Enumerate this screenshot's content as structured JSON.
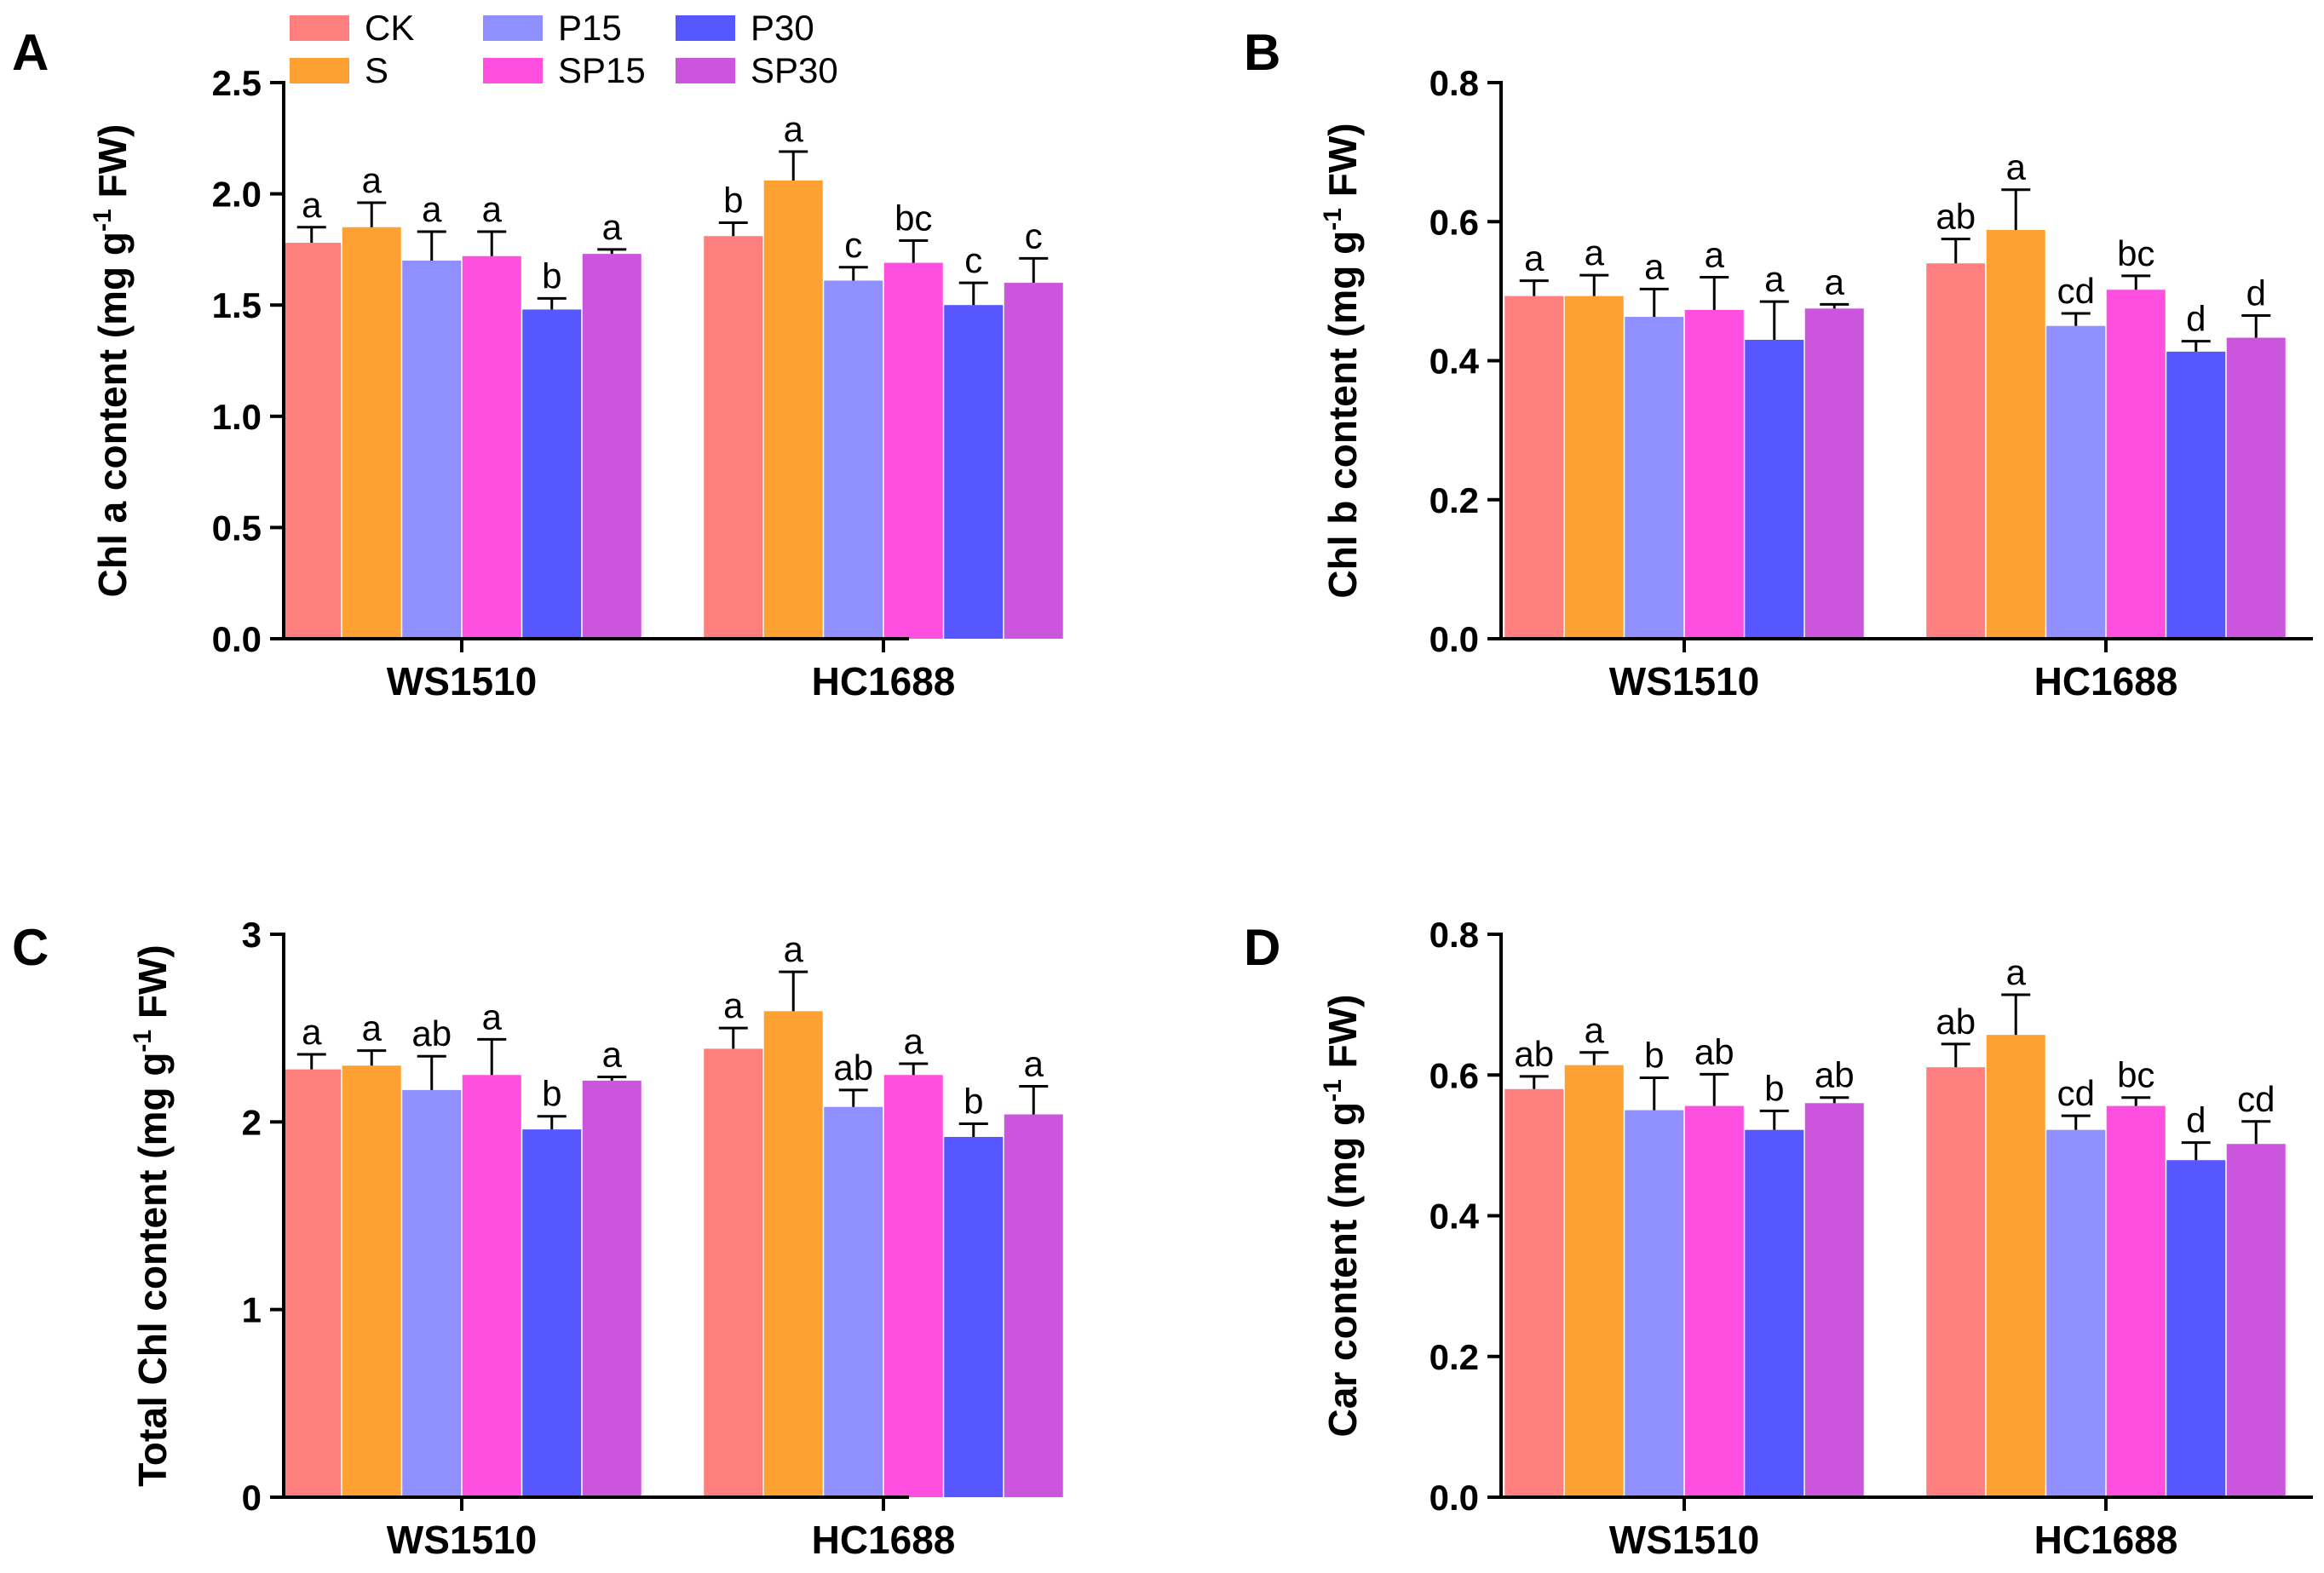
{
  "figure": {
    "legend": [
      {
        "name": "CK",
        "color": "#FF7F7F"
      },
      {
        "name": "S",
        "color": "#FFA033"
      },
      {
        "name": "P15",
        "color": "#8F8FFF"
      },
      {
        "name": "P30",
        "color": "#5757FF"
      },
      {
        "name": "SP15",
        "color": "#FF4FE0"
      },
      {
        "name": "SP30",
        "color": "#CC55DD"
      }
    ]
  },
  "chart_data": [
    {
      "panel": "A",
      "type": "bar",
      "ylabel_main": "Chl a content (mg g",
      "ylabel_sup": "-1",
      "ylabel_end": " FW)",
      "categories": [
        "WS1510",
        "HC1688"
      ],
      "ylim": [
        0,
        2.5
      ],
      "yticks": [
        "0.0",
        "0.5",
        "1.0",
        "1.5",
        "2.0",
        "2.5"
      ],
      "series": [
        {
          "name": "CK",
          "values": [
            1.78,
            1.81
          ],
          "errors": [
            0.07,
            0.06
          ],
          "letters": [
            "a",
            "b"
          ]
        },
        {
          "name": "S",
          "values": [
            1.85,
            2.06
          ],
          "errors": [
            0.11,
            0.13
          ],
          "letters": [
            "a",
            "a"
          ]
        },
        {
          "name": "P15",
          "values": [
            1.7,
            1.61
          ],
          "errors": [
            0.13,
            0.06
          ],
          "letters": [
            "a",
            "c"
          ]
        },
        {
          "name": "SP15",
          "values": [
            1.72,
            1.69
          ],
          "errors": [
            0.11,
            0.1
          ],
          "letters": [
            "a",
            "bc"
          ]
        },
        {
          "name": "P30",
          "values": [
            1.48,
            1.5
          ],
          "errors": [
            0.05,
            0.1
          ],
          "letters": [
            "b",
            "c"
          ]
        },
        {
          "name": "SP30",
          "values": [
            1.73,
            1.6
          ],
          "errors": [
            0.02,
            0.11
          ],
          "letters": [
            "a",
            "c"
          ]
        }
      ]
    },
    {
      "panel": "B",
      "type": "bar",
      "ylabel_main": "Chl b content (mg g",
      "ylabel_sup": "-1",
      "ylabel_end": " FW)",
      "categories": [
        "WS1510",
        "HC1688"
      ],
      "ylim": [
        0,
        0.8
      ],
      "yticks": [
        "0.0",
        "0.2",
        "0.4",
        "0.6",
        "0.8"
      ],
      "series": [
        {
          "name": "CK",
          "values": [
            0.493,
            0.54
          ],
          "errors": [
            0.022,
            0.035
          ],
          "letters": [
            "a",
            "ab"
          ]
        },
        {
          "name": "S",
          "values": [
            0.493,
            0.588
          ],
          "errors": [
            0.03,
            0.058
          ],
          "letters": [
            "a",
            "a"
          ]
        },
        {
          "name": "P15",
          "values": [
            0.463,
            0.45
          ],
          "errors": [
            0.04,
            0.018
          ],
          "letters": [
            "a",
            "cd"
          ]
        },
        {
          "name": "SP15",
          "values": [
            0.473,
            0.502
          ],
          "errors": [
            0.047,
            0.02
          ],
          "letters": [
            "a",
            "bc"
          ]
        },
        {
          "name": "P30",
          "values": [
            0.43,
            0.413
          ],
          "errors": [
            0.055,
            0.015
          ],
          "letters": [
            "a",
            "d"
          ]
        },
        {
          "name": "SP30",
          "values": [
            0.475,
            0.433
          ],
          "errors": [
            0.006,
            0.032
          ],
          "letters": [
            "a",
            "d"
          ]
        }
      ]
    },
    {
      "panel": "C",
      "type": "bar",
      "ylabel_main": "Total Chl content (mg g",
      "ylabel_sup": "-1",
      "ylabel_end": " FW)",
      "categories": [
        "WS1510",
        "HC1688"
      ],
      "ylim": [
        0,
        3
      ],
      "yticks": [
        "0",
        "1",
        "2",
        "3"
      ],
      "series": [
        {
          "name": "CK",
          "values": [
            2.28,
            2.39
          ],
          "errors": [
            0.08,
            0.11
          ],
          "letters": [
            "a",
            "a"
          ]
        },
        {
          "name": "S",
          "values": [
            2.3,
            2.59
          ],
          "errors": [
            0.08,
            0.21
          ],
          "letters": [
            "a",
            "a"
          ]
        },
        {
          "name": "P15",
          "values": [
            2.17,
            2.08
          ],
          "errors": [
            0.18,
            0.09
          ],
          "letters": [
            "ab",
            "ab"
          ]
        },
        {
          "name": "SP15",
          "values": [
            2.25,
            2.25
          ],
          "errors": [
            0.19,
            0.06
          ],
          "letters": [
            "a",
            "a"
          ]
        },
        {
          "name": "P30",
          "values": [
            1.96,
            1.92
          ],
          "errors": [
            0.07,
            0.07
          ],
          "letters": [
            "b",
            "b"
          ]
        },
        {
          "name": "SP30",
          "values": [
            2.22,
            2.04
          ],
          "errors": [
            0.02,
            0.15
          ],
          "letters": [
            "a",
            "a"
          ]
        }
      ]
    },
    {
      "panel": "D",
      "type": "bar",
      "ylabel_main": "Car content (mg g",
      "ylabel_sup": "-1",
      "ylabel_end": " FW)",
      "categories": [
        "WS1510",
        "HC1688"
      ],
      "ylim": [
        0,
        0.8
      ],
      "yticks": [
        "0.0",
        "0.2",
        "0.4",
        "0.6",
        "0.8"
      ],
      "series": [
        {
          "name": "CK",
          "values": [
            0.58,
            0.611
          ],
          "errors": [
            0.018,
            0.033
          ],
          "letters": [
            "ab",
            "ab"
          ]
        },
        {
          "name": "S",
          "values": [
            0.614,
            0.657
          ],
          "errors": [
            0.018,
            0.057
          ],
          "letters": [
            "a",
            "a"
          ]
        },
        {
          "name": "P15",
          "values": [
            0.55,
            0.522
          ],
          "errors": [
            0.046,
            0.02
          ],
          "letters": [
            "b",
            "cd"
          ]
        },
        {
          "name": "SP15",
          "values": [
            0.556,
            0.556
          ],
          "errors": [
            0.045,
            0.012
          ],
          "letters": [
            "ab",
            "bc"
          ]
        },
        {
          "name": "P30",
          "values": [
            0.522,
            0.479
          ],
          "errors": [
            0.027,
            0.025
          ],
          "letters": [
            "b",
            "d"
          ]
        },
        {
          "name": "SP30",
          "values": [
            0.56,
            0.502
          ],
          "errors": [
            0.008,
            0.032
          ],
          "letters": [
            "ab",
            "cd"
          ]
        }
      ]
    }
  ]
}
